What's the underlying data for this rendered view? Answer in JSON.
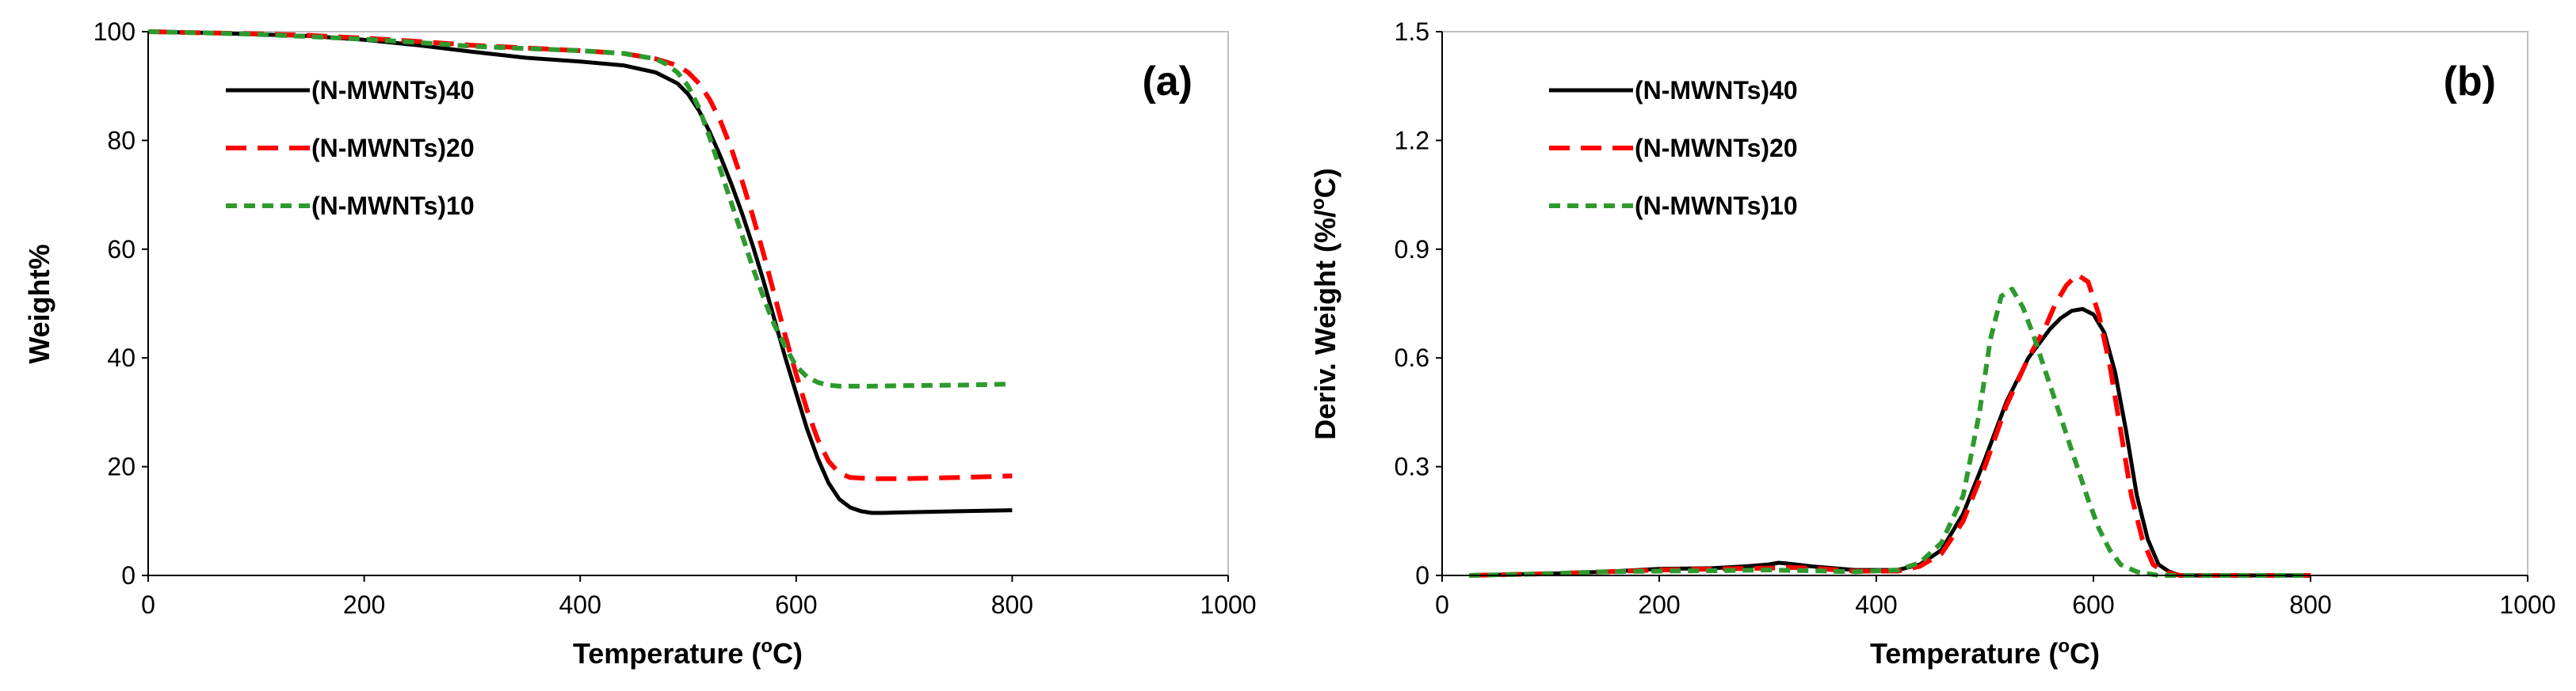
{
  "chart_data": [
    {
      "type": "line",
      "panel_label": "(a)",
      "xlabel": "Temperature (",
      "xlabel_super": "o",
      "xlabel_end": "C)",
      "ylabel": "Weight%",
      "xlim": [
        0,
        1000
      ],
      "ylim": [
        0,
        100
      ],
      "xticks": [
        "0",
        "200",
        "400",
        "600",
        "800",
        "1000"
      ],
      "yticks": [
        "0",
        "20",
        "40",
        "60",
        "80",
        "100"
      ],
      "legend_position": "top-left",
      "series": [
        {
          "name": "(N-MWNTs)40",
          "style": "solid",
          "color": "#000000",
          "x": [
            0,
            50,
            100,
            150,
            200,
            250,
            300,
            350,
            400,
            440,
            470,
            490,
            500,
            510,
            520,
            530,
            540,
            550,
            560,
            570,
            580,
            590,
            600,
            610,
            620,
            630,
            640,
            650,
            660,
            670,
            680,
            700,
            750,
            800
          ],
          "y": [
            100,
            99.8,
            99.5,
            99.2,
            98.5,
            97.5,
            96.3,
            95.2,
            94.5,
            93.8,
            92.5,
            90.5,
            88.5,
            85.5,
            81.5,
            77,
            72,
            66.5,
            60.5,
            54,
            47,
            40,
            33.5,
            27,
            21.5,
            17,
            14,
            12.5,
            11.8,
            11.5,
            11.5,
            11.6,
            11.8,
            12
          ]
        },
        {
          "name": "(N-MWNTs)20",
          "style": "dashed",
          "color": "#ff0000",
          "x": [
            0,
            50,
            100,
            150,
            200,
            250,
            300,
            350,
            400,
            440,
            470,
            490,
            500,
            510,
            520,
            530,
            540,
            550,
            560,
            570,
            580,
            590,
            600,
            610,
            620,
            630,
            640,
            650,
            670,
            700,
            750,
            800
          ],
          "y": [
            100,
            99.8,
            99.6,
            99.3,
            98.8,
            98.2,
            97.5,
            97,
            96.5,
            96,
            95,
            93.8,
            92.5,
            90.5,
            87.5,
            83.5,
            78.5,
            72.5,
            66,
            59,
            51.5,
            44,
            37,
            30.5,
            25,
            21,
            18.8,
            18,
            17.8,
            17.8,
            18,
            18.3
          ]
        },
        {
          "name": "(N-MWNTs)10",
          "style": "dotted",
          "color": "#2e9a2e",
          "x": [
            0,
            50,
            100,
            150,
            200,
            250,
            300,
            350,
            400,
            440,
            470,
            480,
            490,
            500,
            510,
            520,
            530,
            540,
            550,
            560,
            570,
            580,
            590,
            600,
            610,
            620,
            630,
            640,
            650,
            670,
            700,
            750,
            800
          ],
          "y": [
            100,
            99.8,
            99.5,
            99.1,
            98.6,
            98,
            97.3,
            96.9,
            96.5,
            96,
            95,
            94,
            92.5,
            90,
            86,
            80.5,
            74.5,
            68.5,
            62.5,
            56.5,
            51,
            46,
            42,
            38.5,
            36.5,
            35.5,
            35,
            34.8,
            34.8,
            34.8,
            34.9,
            35,
            35.2
          ]
        }
      ]
    },
    {
      "type": "line",
      "panel_label": "(b)",
      "xlabel": "Temperature (",
      "xlabel_super": "o",
      "xlabel_end": "C)",
      "ylabel": "Deriv. Weight (%/",
      "ylabel_super": "o",
      "ylabel_end": "C)",
      "xlim": [
        0,
        1000
      ],
      "ylim": [
        0,
        1.5
      ],
      "xticks": [
        "0",
        "200",
        "400",
        "600",
        "800",
        "1000"
      ],
      "yticks": [
        "0",
        "0.3",
        "0.6",
        "0.9",
        "1.2",
        "1.5"
      ],
      "legend_position": "top-left",
      "series": [
        {
          "name": "(N-MWNTs)40",
          "style": "solid",
          "color": "#000000",
          "x": [
            25,
            100,
            150,
            200,
            250,
            280,
            300,
            310,
            320,
            340,
            380,
            420,
            440,
            460,
            480,
            500,
            520,
            540,
            560,
            570,
            580,
            590,
            600,
            610,
            620,
            630,
            640,
            650,
            660,
            670,
            680,
            700,
            800
          ],
          "y": [
            0.0,
            0.005,
            0.01,
            0.018,
            0.02,
            0.025,
            0.03,
            0.035,
            0.032,
            0.025,
            0.015,
            0.015,
            0.03,
            0.07,
            0.17,
            0.32,
            0.48,
            0.6,
            0.68,
            0.71,
            0.73,
            0.735,
            0.72,
            0.67,
            0.56,
            0.4,
            0.22,
            0.1,
            0.03,
            0.01,
            0.0,
            0.0,
            0.0
          ]
        },
        {
          "name": "(N-MWNTs)20",
          "style": "dashed",
          "color": "#ff0000",
          "x": [
            25,
            100,
            150,
            200,
            250,
            300,
            320,
            340,
            380,
            420,
            440,
            460,
            480,
            500,
            520,
            540,
            555,
            565,
            575,
            585,
            595,
            605,
            615,
            625,
            635,
            645,
            655,
            665,
            680,
            700,
            800
          ],
          "y": [
            0.0,
            0.005,
            0.01,
            0.015,
            0.018,
            0.02,
            0.022,
            0.02,
            0.012,
            0.012,
            0.025,
            0.06,
            0.15,
            0.3,
            0.47,
            0.6,
            0.68,
            0.75,
            0.8,
            0.83,
            0.81,
            0.72,
            0.58,
            0.4,
            0.22,
            0.1,
            0.03,
            0.01,
            0.0,
            0.0,
            0.0
          ]
        },
        {
          "name": "(N-MWNTs)10",
          "style": "dotted",
          "color": "#2e9a2e",
          "x": [
            25,
            100,
            150,
            200,
            250,
            300,
            340,
            380,
            420,
            440,
            460,
            480,
            495,
            505,
            515,
            525,
            535,
            545,
            555,
            565,
            575,
            585,
            595,
            605,
            615,
            625,
            640,
            660,
            700,
            800
          ],
          "y": [
            0.0,
            0.005,
            0.01,
            0.012,
            0.013,
            0.015,
            0.013,
            0.01,
            0.015,
            0.035,
            0.09,
            0.22,
            0.45,
            0.65,
            0.77,
            0.79,
            0.74,
            0.66,
            0.57,
            0.48,
            0.39,
            0.3,
            0.21,
            0.13,
            0.07,
            0.03,
            0.01,
            0.0,
            0.0,
            0.0
          ]
        }
      ]
    }
  ]
}
